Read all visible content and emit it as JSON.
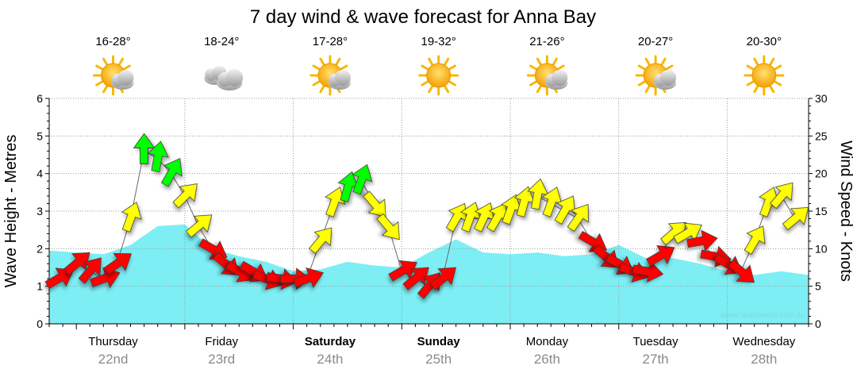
{
  "chart_data": {
    "type": "area",
    "title": "7 day wind & wave forecast for Anna Bay",
    "ylabel": "Wave Height - Metres",
    "y2label": "Wind Speed - Knots",
    "ylim": [
      0,
      6
    ],
    "y2lim": [
      0,
      30
    ],
    "yticks": [
      0,
      1,
      2,
      3,
      4,
      5,
      6
    ],
    "y2ticks": [
      0,
      5,
      10,
      15,
      20,
      25,
      30
    ],
    "watermark": "www.seabreeze.com.au",
    "x_start_hour": -6,
    "x_end_hour": 162,
    "days": [
      {
        "day": "Thursday",
        "date": "22nd",
        "bold": false,
        "temp": "16-28°",
        "icon": "partly-cloudy-icon"
      },
      {
        "day": "Friday",
        "date": "23rd",
        "bold": false,
        "temp": "18-24°",
        "icon": "cloudy-icon"
      },
      {
        "day": "Saturday",
        "date": "24th",
        "bold": true,
        "temp": "17-28°",
        "icon": "partly-cloudy-icon"
      },
      {
        "day": "Sunday",
        "date": "25th",
        "bold": true,
        "temp": "19-32°",
        "icon": "sunny-icon"
      },
      {
        "day": "Monday",
        "date": "26th",
        "bold": false,
        "temp": "21-26°",
        "icon": "partly-cloudy-icon"
      },
      {
        "day": "Tuesday",
        "date": "27th",
        "bold": false,
        "temp": "20-27°",
        "icon": "partly-cloudy-icon"
      },
      {
        "day": "Wednesday",
        "date": "28th",
        "bold": false,
        "temp": "20-30°",
        "icon": "sunny-icon"
      }
    ],
    "wave_series": {
      "name": "Wave Height",
      "color": "#7deef4",
      "hours": [
        -6,
        0,
        6,
        12,
        18,
        24,
        30,
        36,
        42,
        48,
        54,
        60,
        66,
        72,
        78,
        84,
        90,
        96,
        102,
        108,
        114,
        120,
        126,
        132,
        138,
        144,
        150,
        156,
        162
      ],
      "values": [
        1.95,
        1.9,
        1.85,
        2.1,
        2.6,
        2.65,
        2.0,
        1.8,
        1.65,
        1.4,
        1.45,
        1.65,
        1.55,
        1.5,
        1.9,
        2.25,
        1.9,
        1.85,
        1.9,
        1.8,
        1.85,
        2.1,
        1.75,
        1.75,
        1.6,
        1.4,
        1.3,
        1.4,
        1.3
      ]
    },
    "wind_series": {
      "name": "Wind Speed",
      "colors": {
        "low": "#ff0000",
        "moderate": "#ffff00",
        "strong": "#00ff00"
      },
      "hours": [
        -4,
        0,
        3,
        6,
        9,
        12,
        15,
        18,
        21,
        24,
        27,
        30,
        33,
        36,
        39,
        42,
        45,
        48,
        51,
        54,
        57,
        60,
        63,
        66,
        69,
        72,
        75,
        78,
        81,
        84,
        87,
        90,
        93,
        96,
        99,
        102,
        105,
        108,
        111,
        114,
        117,
        120,
        123,
        126,
        129,
        132,
        135,
        138,
        141,
        144,
        147,
        150,
        153,
        156,
        159
      ],
      "knots": [
        6,
        8,
        7,
        6,
        8,
        14,
        23,
        22,
        20,
        17,
        13,
        10,
        8,
        7,
        7,
        6,
        6,
        6,
        6,
        11,
        16,
        18,
        19,
        16,
        13,
        7,
        6,
        5,
        6,
        14,
        14,
        14,
        14,
        15,
        16,
        17,
        16,
        15,
        14,
        11,
        9,
        8,
        7,
        7,
        9,
        12,
        12,
        11,
        9,
        8,
        7,
        11,
        16,
        17,
        14
      ],
      "color_class": [
        "low",
        "low",
        "low",
        "low",
        "low",
        "moderate",
        "strong",
        "strong",
        "strong",
        "moderate",
        "moderate",
        "low",
        "low",
        "low",
        "low",
        "low",
        "low",
        "low",
        "low",
        "moderate",
        "moderate",
        "strong",
        "strong",
        "moderate",
        "moderate",
        "low",
        "low",
        "low",
        "low",
        "moderate",
        "moderate",
        "moderate",
        "moderate",
        "moderate",
        "moderate",
        "moderate",
        "moderate",
        "moderate",
        "moderate",
        "low",
        "low",
        "low",
        "low",
        "low",
        "low",
        "moderate",
        "moderate",
        "low",
        "low",
        "low",
        "low",
        "moderate",
        "moderate",
        "moderate",
        "moderate"
      ],
      "direction_deg": [
        240,
        230,
        220,
        250,
        235,
        200,
        180,
        190,
        210,
        225,
        230,
        300,
        310,
        300,
        300,
        290,
        280,
        270,
        250,
        220,
        200,
        195,
        200,
        320,
        320,
        240,
        230,
        220,
        230,
        210,
        200,
        205,
        210,
        200,
        195,
        190,
        200,
        210,
        215,
        300,
        310,
        300,
        290,
        280,
        240,
        230,
        240,
        260,
        280,
        300,
        310,
        210,
        200,
        220,
        230
      ]
    }
  }
}
